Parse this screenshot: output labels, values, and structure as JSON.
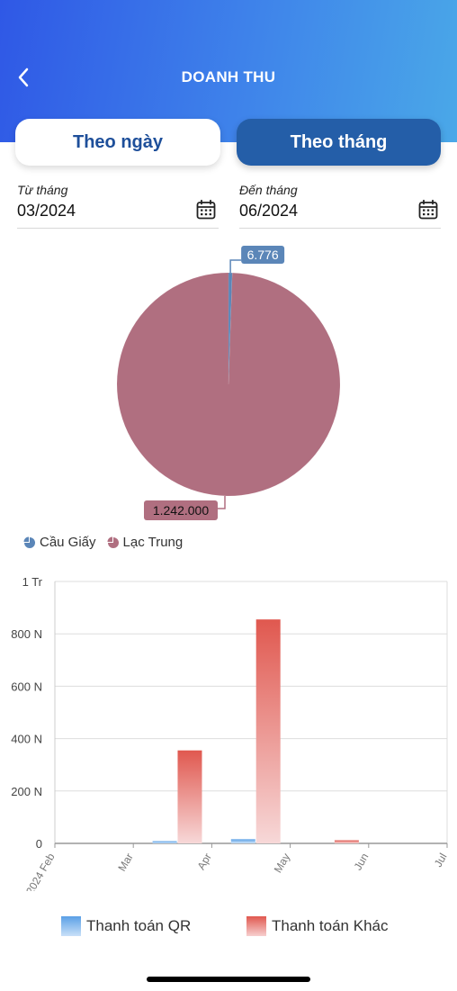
{
  "header": {
    "title": "DOANH THU",
    "back_icon": "chevron-left-icon"
  },
  "tabs": [
    {
      "label": "Theo ngày",
      "active": false
    },
    {
      "label": "Theo tháng",
      "active": true
    }
  ],
  "filters": {
    "from": {
      "label": "Từ tháng",
      "value": "03/2024",
      "icon": "calendar-icon"
    },
    "to": {
      "label": "Đến tháng",
      "value": "06/2024",
      "icon": "calendar-icon"
    }
  },
  "colors": {
    "header_start": "#2f58e6",
    "header_end": "#4aa8e8",
    "tab_active": "#245ea8",
    "tab_text": "#1e4f9a",
    "pie_cau_giay": "#5b86b8",
    "pie_lac_trung": "#b06f80",
    "bar_qr": "#5aa0e6",
    "bar_other": "#e0584f"
  },
  "chart_data": [
    {
      "type": "pie",
      "slices": [
        {
          "name": "Cầu Giấy",
          "value": 6776,
          "label": "6.776"
        },
        {
          "name": "Lạc Trung",
          "value": 1242000,
          "label": "1.242.000"
        }
      ],
      "legend": [
        "Cầu Giấy",
        "Lạc Trung"
      ]
    },
    {
      "type": "bar",
      "x_ticks": [
        "2024 Feb",
        "Mar",
        "Apr",
        "May",
        "Jun",
        "Jul"
      ],
      "y_ticks": [
        "0",
        "200 N",
        "400 N",
        "600 N",
        "800 N",
        "1 Tr"
      ],
      "ylim": [
        0,
        1000000
      ],
      "series": [
        {
          "name": "Thanh toán QR",
          "points": [
            {
              "x": "Mar",
              "value": 8000
            },
            {
              "x": "Apr",
              "value": 16000
            },
            {
              "x": "May",
              "value": 0
            },
            {
              "x": "Jun",
              "value": 0
            }
          ]
        },
        {
          "name": "Thanh toán Khác",
          "points": [
            {
              "x": "Mar",
              "value": 355000
            },
            {
              "x": "Apr",
              "value": 855000
            },
            {
              "x": "May",
              "value": 12000
            },
            {
              "x": "Jun",
              "value": 0
            }
          ]
        }
      ],
      "legend": [
        "Thanh toán QR",
        "Thanh toán Khác"
      ]
    }
  ]
}
